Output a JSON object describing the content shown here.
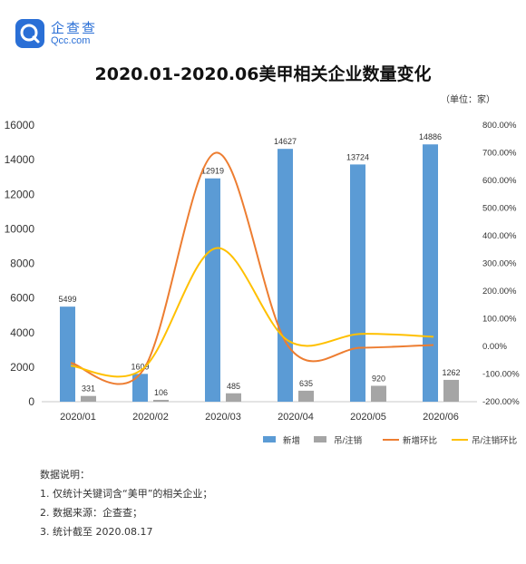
{
  "brand": {
    "name_cn": "企查查",
    "name_en": "Qcc.com",
    "logo_icon": "magnifier-q-icon",
    "color": "#2a6fd6"
  },
  "unit": "（单位：家）",
  "notes": {
    "heading": "数据说明：",
    "items": [
      "1. 仅统计关键词含“美甲”的相关企业；",
      "2. 数据来源：企查查；",
      "3. 统计截至 2020.08.17"
    ]
  },
  "chart_data": {
    "type": "bar",
    "title": "2020.01-2020.06美甲相关企业数量变化",
    "categories": [
      "2020/01",
      "2020/02",
      "2020/03",
      "2020/04",
      "2020/05",
      "2020/06"
    ],
    "ylim": [
      0,
      16000
    ],
    "yticks": [
      "0",
      "2000",
      "4000",
      "6000",
      "8000",
      "10000",
      "12000",
      "14000",
      "16000"
    ],
    "y2lim": [
      -200,
      800
    ],
    "y2ticks": [
      "-200.00%",
      "-100.00%",
      "0.00%",
      "100.00%",
      "200.00%",
      "300.00%",
      "400.00%",
      "500.00%",
      "600.00%",
      "700.00%",
      "800.00%"
    ],
    "grid": false,
    "legend_position": "bottom-right",
    "series": [
      {
        "name": "新增",
        "kind": "bar",
        "axis": "left",
        "color": "#5b9bd5",
        "values": [
          5499,
          1609,
          12919,
          14627,
          13724,
          14886
        ],
        "labels": [
          "5499",
          "1609",
          "12919",
          "14627",
          "13724",
          "14886"
        ]
      },
      {
        "name": "吊/注销",
        "kind": "bar",
        "axis": "left",
        "color": "#a5a5a5",
        "values": [
          331,
          106,
          485,
          635,
          920,
          1262
        ],
        "labels": [
          "331",
          "106",
          "485",
          "635",
          "920",
          "1262"
        ]
      },
      {
        "name": "新增环比",
        "kind": "line",
        "axis": "right",
        "color": "#ed7d31",
        "values": [
          -60,
          -85,
          700,
          0,
          -5,
          5
        ]
      },
      {
        "name": "吊/注销环比",
        "kind": "line",
        "axis": "right",
        "color": "#ffc000",
        "values": [
          -70,
          -80,
          355,
          20,
          45,
          35
        ]
      }
    ]
  }
}
